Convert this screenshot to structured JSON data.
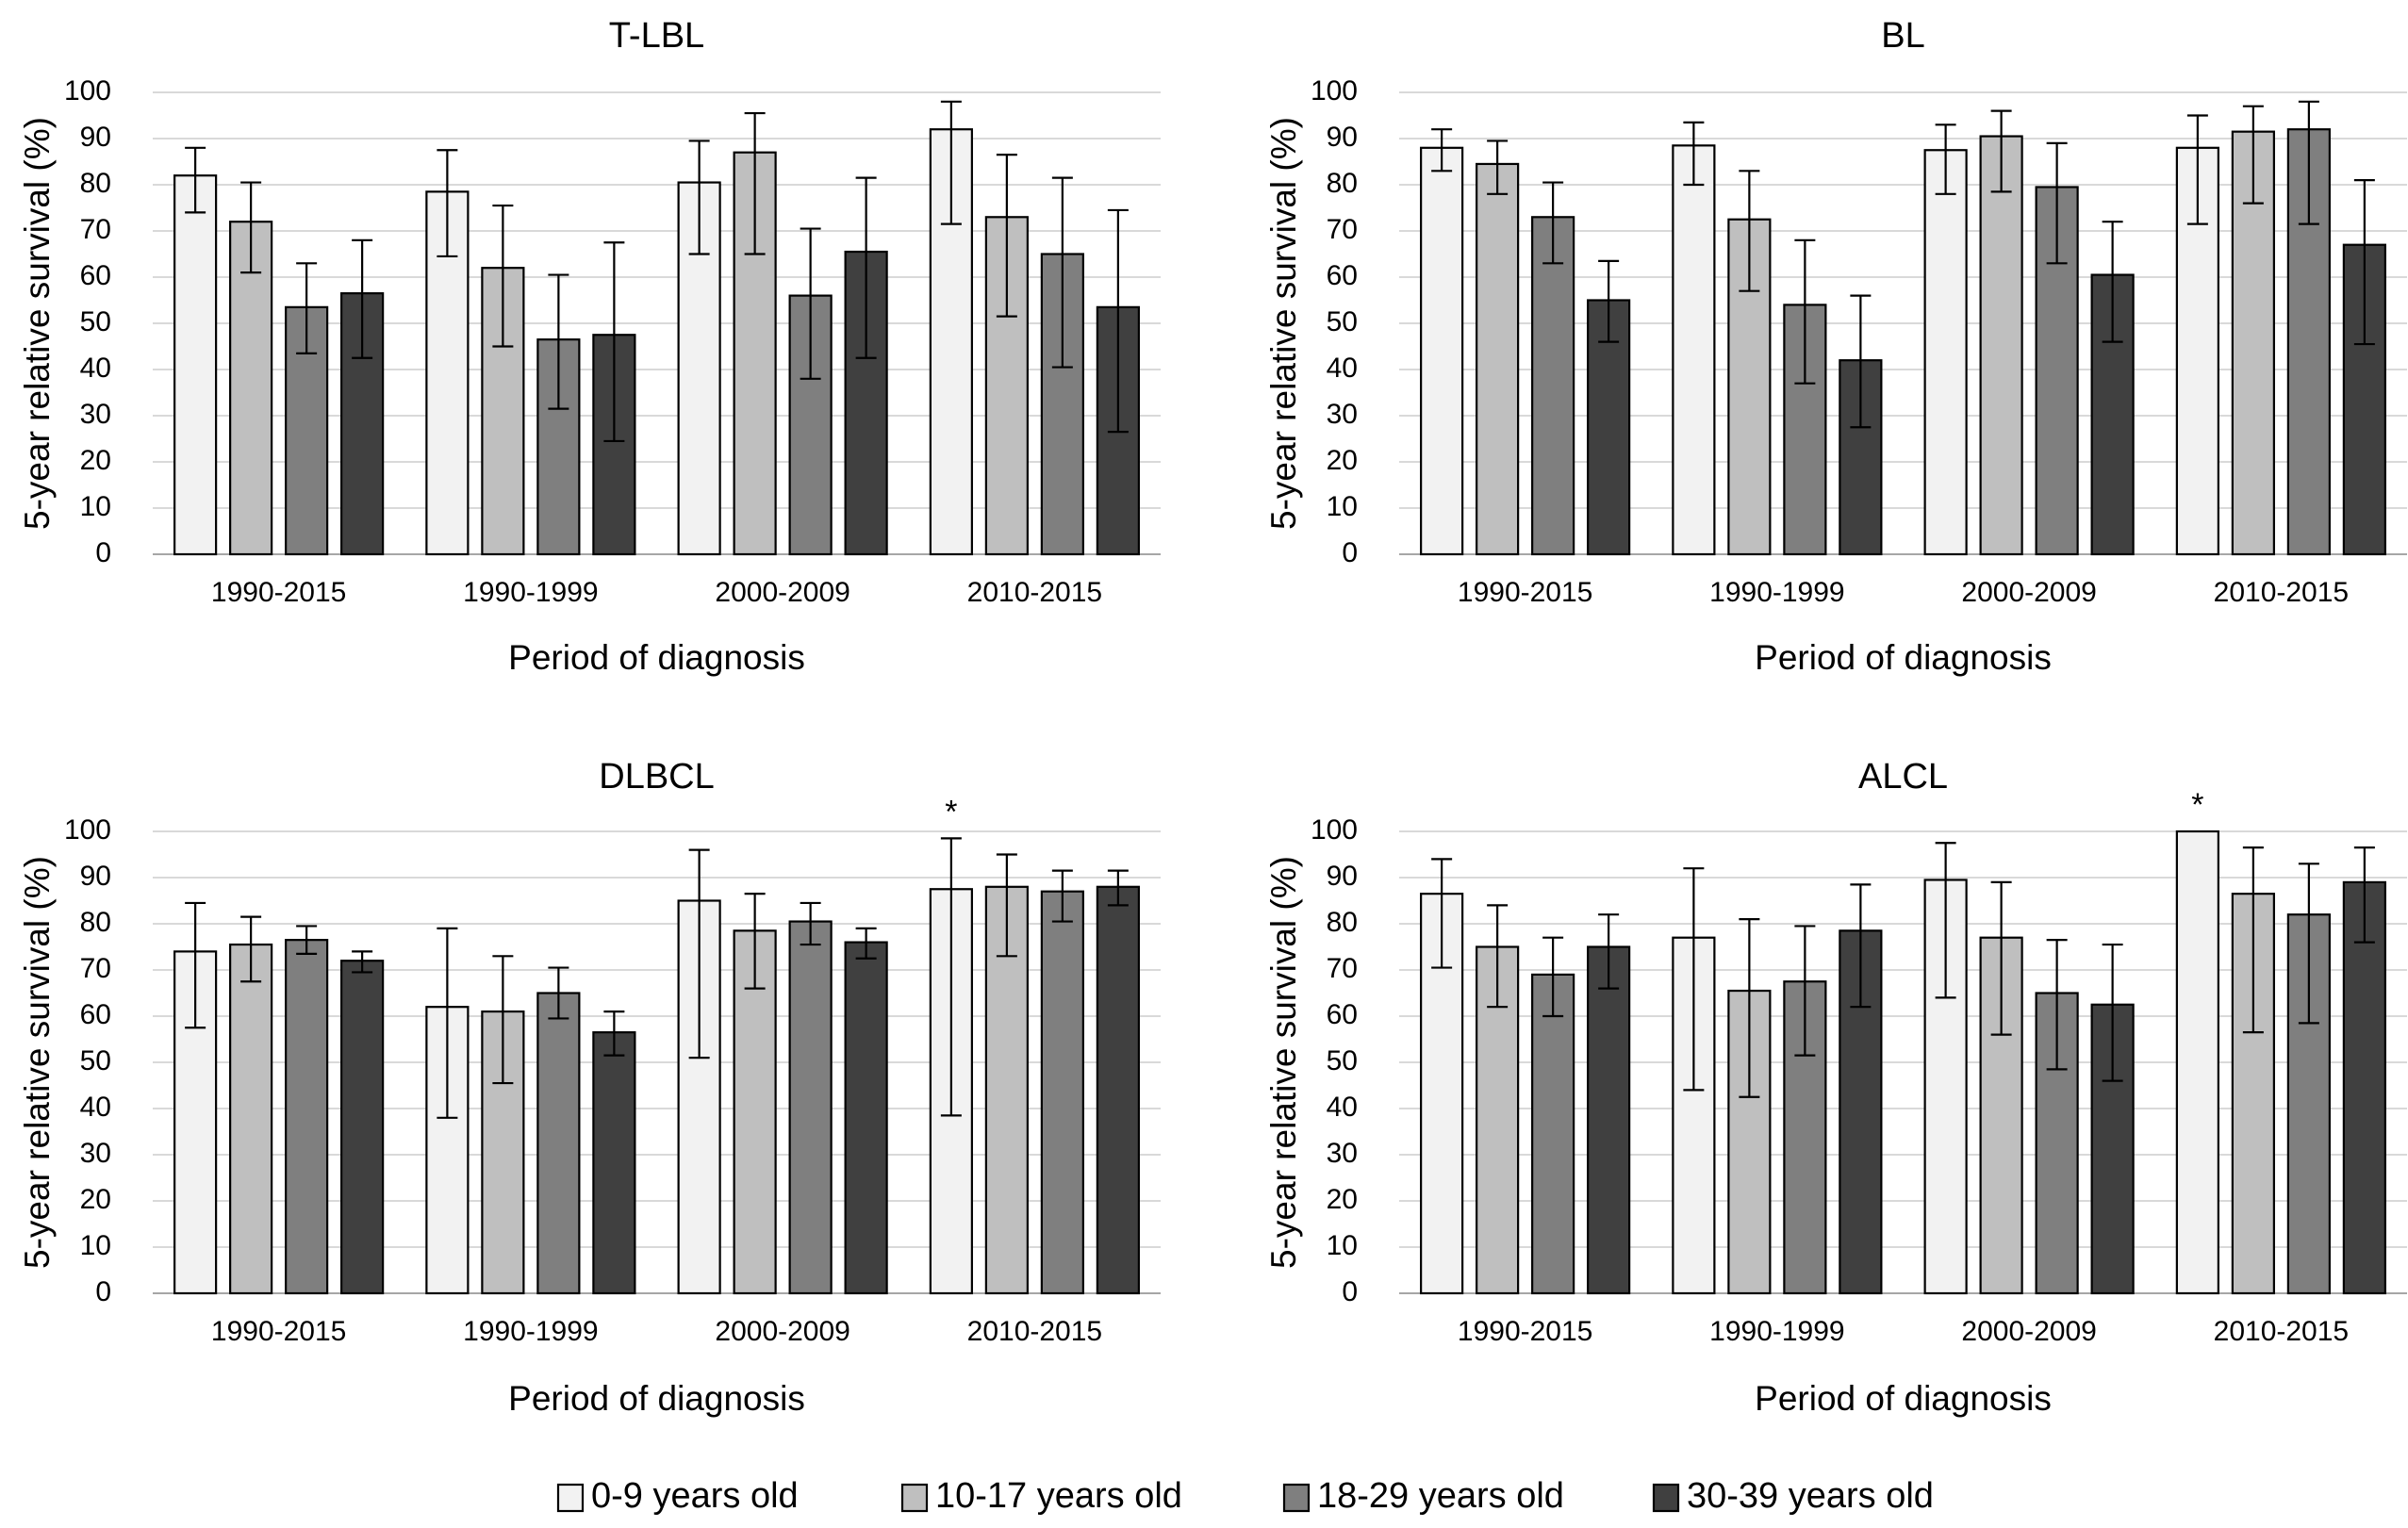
{
  "chart_data": [
    {
      "type": "bar",
      "title": "T-LBL",
      "xlabel": "Period of diagnosis",
      "ylabel": "5-year relative survival (%)",
      "ylim": [
        0,
        100
      ],
      "yticks": [
        0,
        10,
        20,
        30,
        40,
        50,
        60,
        70,
        80,
        90,
        100
      ],
      "grid": true,
      "categories": [
        "1990-2015",
        "1990-1999",
        "2000-2009",
        "2010-2015"
      ],
      "series": [
        {
          "name": "0-9 years old",
          "values": [
            82,
            78.5,
            80.5,
            92
          ],
          "err_low": [
            74,
            64.5,
            65,
            71.5
          ],
          "err_high": [
            88,
            87.5,
            89.5,
            98
          ]
        },
        {
          "name": "10-17 years old",
          "values": [
            72,
            62,
            87,
            73
          ],
          "err_low": [
            61,
            45,
            65,
            51.5
          ],
          "err_high": [
            80.5,
            75.5,
            95.5,
            86.5
          ]
        },
        {
          "name": "18-29  years old",
          "values": [
            53.5,
            46.5,
            56,
            65
          ],
          "err_low": [
            43.5,
            31.5,
            38,
            40.5
          ],
          "err_high": [
            63,
            60.5,
            70.5,
            81.5
          ]
        },
        {
          "name": "30-39 years old",
          "values": [
            56.5,
            47.5,
            65.5,
            53.5
          ],
          "err_low": [
            42.5,
            24.5,
            42.5,
            26.5
          ],
          "err_high": [
            68,
            67.5,
            81.5,
            74.5
          ]
        }
      ],
      "annotations": []
    },
    {
      "type": "bar",
      "title": "BL",
      "xlabel": "Period of diagnosis",
      "ylabel": "5-year relative survival (%)",
      "ylim": [
        0,
        100
      ],
      "yticks": [
        0,
        10,
        20,
        30,
        40,
        50,
        60,
        70,
        80,
        90,
        100
      ],
      "grid": true,
      "categories": [
        "1990-2015",
        "1990-1999",
        "2000-2009",
        "2010-2015"
      ],
      "series": [
        {
          "name": "0-9 years old",
          "values": [
            88,
            88.5,
            87.5,
            88
          ],
          "err_low": [
            83,
            80,
            78,
            71.5
          ],
          "err_high": [
            92,
            93.5,
            93,
            95
          ]
        },
        {
          "name": "10-17 years old",
          "values": [
            84.5,
            72.5,
            90.5,
            91.5
          ],
          "err_low": [
            78,
            57,
            78.5,
            76
          ],
          "err_high": [
            89.5,
            83,
            96,
            97
          ]
        },
        {
          "name": "18-29  years old",
          "values": [
            73,
            54,
            79.5,
            92
          ],
          "err_low": [
            63,
            37,
            63,
            71.5
          ],
          "err_high": [
            80.5,
            68,
            89,
            98
          ]
        },
        {
          "name": "30-39 years old",
          "values": [
            55,
            42,
            60.5,
            67
          ],
          "err_low": [
            46,
            27.5,
            46,
            45.5
          ],
          "err_high": [
            63.5,
            56,
            72,
            81
          ]
        }
      ],
      "annotations": []
    },
    {
      "type": "bar",
      "title": "DLBCL",
      "xlabel": "Period of diagnosis",
      "ylabel": "5-year relative survival (%)",
      "ylim": [
        0,
        100
      ],
      "yticks": [
        0,
        10,
        20,
        30,
        40,
        50,
        60,
        70,
        80,
        90,
        100
      ],
      "grid": true,
      "categories": [
        "1990-2015",
        "1990-1999",
        "2000-2009",
        "2010-2015"
      ],
      "series": [
        {
          "name": "0-9 years old",
          "values": [
            74,
            62,
            85,
            87.5
          ],
          "err_low": [
            57.5,
            38,
            51,
            38.5
          ],
          "err_high": [
            84.5,
            79,
            96,
            98.5
          ]
        },
        {
          "name": "10-17 years old",
          "values": [
            75.5,
            61,
            78.5,
            88
          ],
          "err_low": [
            67.5,
            45.5,
            66,
            73
          ],
          "err_high": [
            81.5,
            73,
            86.5,
            95
          ]
        },
        {
          "name": "18-29  years old",
          "values": [
            76.5,
            65,
            80.5,
            87
          ],
          "err_low": [
            73.5,
            59.5,
            75.5,
            80.5
          ],
          "err_high": [
            79.5,
            70.5,
            84.5,
            91.5
          ]
        },
        {
          "name": "30-39 years old",
          "values": [
            72,
            56.5,
            76,
            88
          ],
          "err_low": [
            69.5,
            51.5,
            72.5,
            84
          ],
          "err_high": [
            74,
            61,
            79,
            91.5
          ]
        }
      ],
      "annotations": [
        {
          "text": "*",
          "category": "2010-2015",
          "series": "0-9 years old"
        }
      ]
    },
    {
      "type": "bar",
      "title": "ALCL",
      "xlabel": "Period of diagnosis",
      "ylabel": "5-year relative survival (%)",
      "ylim": [
        0,
        100
      ],
      "yticks": [
        0,
        10,
        20,
        30,
        40,
        50,
        60,
        70,
        80,
        90,
        100
      ],
      "grid": true,
      "categories": [
        "1990-2015",
        "1990-1999",
        "2000-2009",
        "2010-2015"
      ],
      "series": [
        {
          "name": "0-9 years old",
          "values": [
            86.5,
            77,
            89.5,
            100
          ],
          "err_low": [
            70.5,
            44,
            64,
            null
          ],
          "err_high": [
            94,
            92,
            97.5,
            null
          ]
        },
        {
          "name": "10-17 years old",
          "values": [
            75,
            65.5,
            77,
            86.5
          ],
          "err_low": [
            62,
            42.5,
            56,
            56.5
          ],
          "err_high": [
            84,
            81,
            89,
            96.5
          ]
        },
        {
          "name": "18-29  years old",
          "values": [
            69,
            67.5,
            65,
            82
          ],
          "err_low": [
            60,
            51.5,
            48.5,
            58.5
          ],
          "err_high": [
            77,
            79.5,
            76.5,
            93
          ]
        },
        {
          "name": "30-39 years old",
          "values": [
            75,
            78.5,
            62.5,
            89
          ],
          "err_low": [
            66,
            62,
            46,
            76
          ],
          "err_high": [
            82,
            88.5,
            75.5,
            96.5
          ]
        }
      ],
      "annotations": [
        {
          "text": "*",
          "category": "2010-2015",
          "series": "0-9 years old"
        }
      ]
    }
  ],
  "legend": {
    "position": "bottom",
    "items": [
      {
        "label": "0-9 years old",
        "color": "#f2f2f2"
      },
      {
        "label": "10-17 years old",
        "color": "#bfbfbf"
      },
      {
        "label": "18-29  years old",
        "color": "#7f7f7f"
      },
      {
        "label": "30-39 years old",
        "color": "#404040"
      }
    ]
  }
}
